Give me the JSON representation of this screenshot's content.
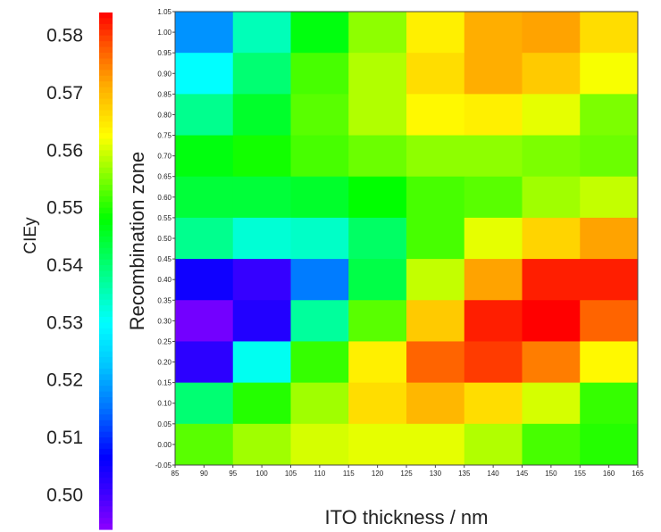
{
  "chart_data": {
    "type": "heatmap",
    "title": "",
    "xlabel": "ITO thickness / nm",
    "ylabel": "Recombination zone",
    "colorbar_label": "CIEy",
    "x_ticks": [
      "85",
      "90",
      "95",
      "100",
      "105",
      "110",
      "115",
      "120",
      "125",
      "130",
      "135",
      "140",
      "145",
      "150",
      "155",
      "160",
      "165"
    ],
    "y_ticks": [
      "-0.05",
      "0.00",
      "0.05",
      "0.10",
      "0.15",
      "0.20",
      "0.25",
      "0.30",
      "0.35",
      "0.40",
      "0.45",
      "0.50",
      "0.55",
      "0.60",
      "0.65",
      "0.70",
      "0.75",
      "0.80",
      "0.85",
      "0.90",
      "0.95",
      "1.00",
      "1.05"
    ],
    "colorbar_ticks": [
      "0.58",
      "0.57",
      "0.56",
      "0.55",
      "0.54",
      "0.53",
      "0.52",
      "0.51",
      "0.50"
    ],
    "colorbar_range": [
      0.494,
      0.584
    ],
    "x_range": [
      85,
      165
    ],
    "y_range": [
      -0.05,
      1.05
    ],
    "x_centers": [
      90,
      100,
      110,
      120,
      130,
      140,
      150,
      160
    ],
    "y_centers": [
      1.0,
      0.9,
      0.8,
      0.7,
      0.6,
      0.5,
      0.4,
      0.3,
      0.2,
      0.1,
      0.0
    ],
    "cell_width": 10,
    "cell_height": 0.1,
    "values": [
      [
        0.518,
        0.535,
        0.547,
        0.556,
        0.564,
        0.571,
        0.572,
        0.566
      ],
      [
        0.53,
        0.54,
        0.552,
        0.558,
        0.566,
        0.571,
        0.568,
        0.562
      ],
      [
        0.538,
        0.545,
        0.553,
        0.558,
        0.563,
        0.564,
        0.561,
        0.555
      ],
      [
        0.547,
        0.549,
        0.552,
        0.554,
        0.556,
        0.556,
        0.555,
        0.554
      ],
      [
        0.544,
        0.544,
        0.545,
        0.548,
        0.552,
        0.553,
        0.557,
        0.559
      ],
      [
        0.538,
        0.533,
        0.534,
        0.541,
        0.552,
        0.561,
        0.567,
        0.572
      ],
      [
        0.505,
        0.501,
        0.516,
        0.543,
        0.559,
        0.572,
        0.582,
        0.582
      ],
      [
        0.496,
        0.503,
        0.537,
        0.553,
        0.568,
        0.582,
        0.584,
        0.577
      ],
      [
        0.502,
        0.531,
        0.551,
        0.564,
        0.577,
        0.58,
        0.575,
        0.563
      ],
      [
        0.54,
        0.55,
        0.557,
        0.566,
        0.57,
        0.566,
        0.56,
        0.551
      ],
      [
        0.553,
        0.557,
        0.56,
        0.561,
        0.561,
        0.558,
        0.552,
        0.55
      ]
    ],
    "grid": false,
    "legend": "colorbar on the left"
  }
}
